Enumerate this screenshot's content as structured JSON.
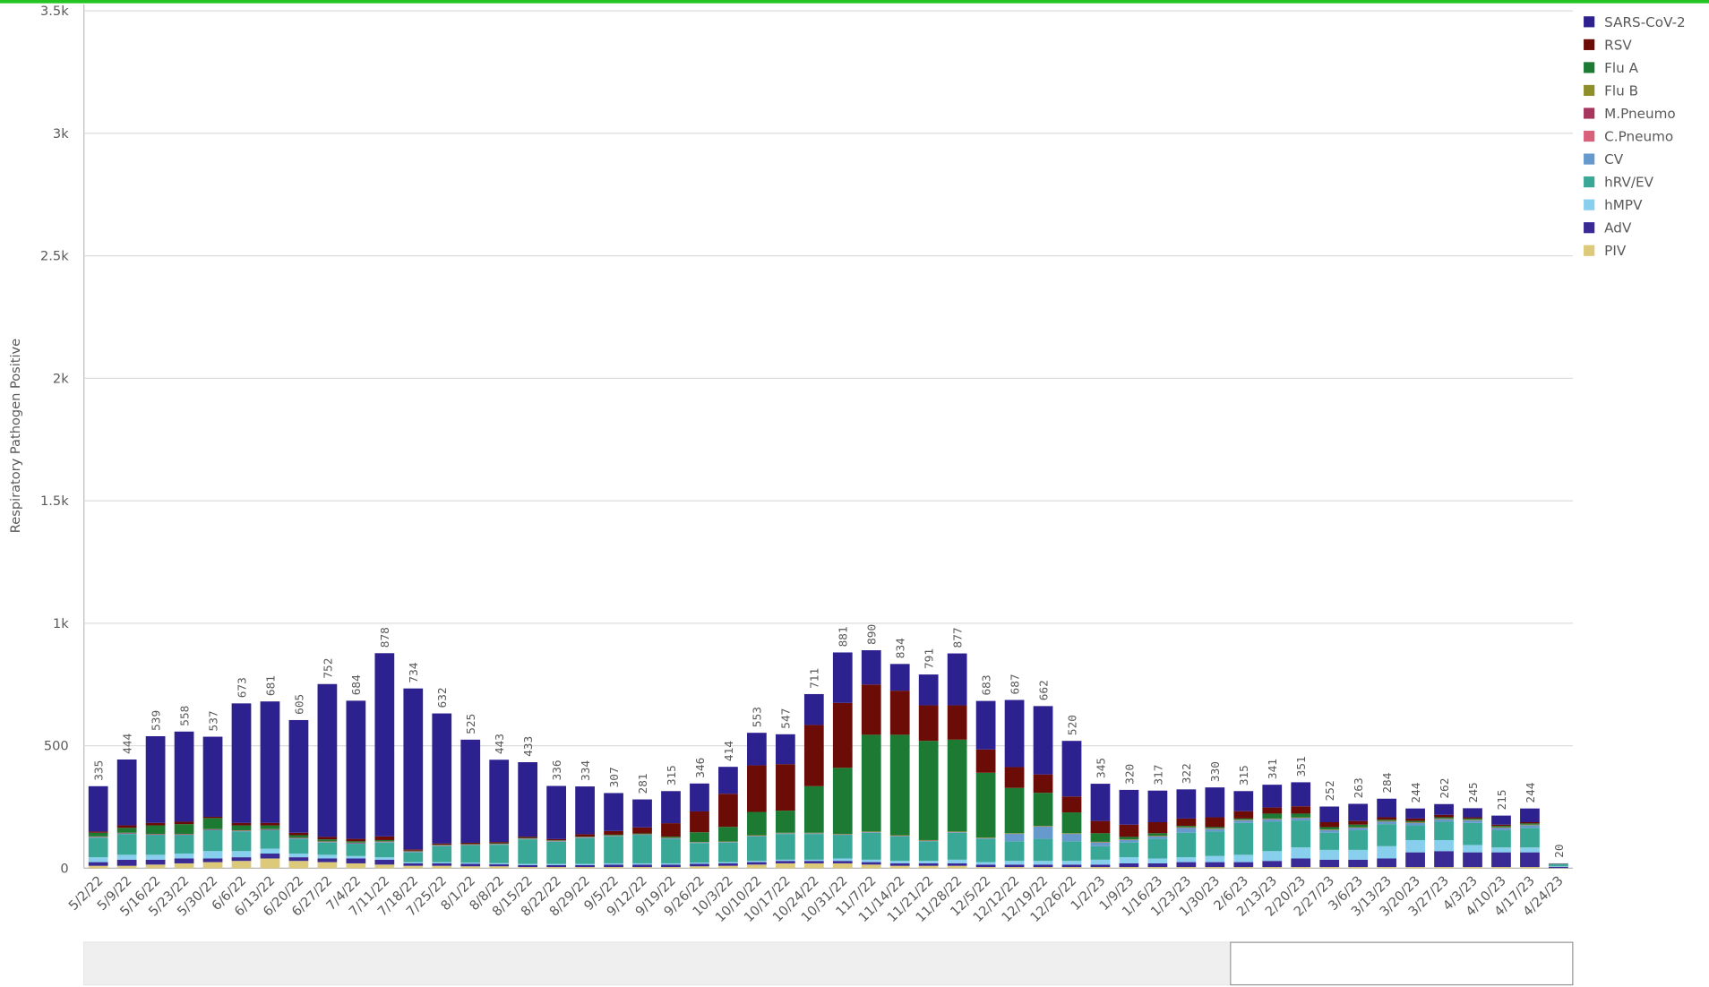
{
  "chart_data": {
    "type": "stacked-bar",
    "y_label": "Respiratory Pathogen Positive",
    "categories": [
      "5/2/22",
      "5/9/22",
      "5/16/22",
      "5/23/22",
      "5/30/22",
      "6/6/22",
      "6/13/22",
      "6/20/22",
      "6/27/22",
      "7/4/22",
      "7/11/22",
      "7/18/22",
      "7/25/22",
      "8/1/22",
      "8/8/22",
      "8/15/22",
      "8/22/22",
      "8/29/22",
      "9/5/22",
      "9/12/22",
      "9/19/22",
      "9/26/22",
      "10/3/22",
      "10/10/22",
      "10/17/22",
      "10/24/22",
      "10/31/22",
      "11/7/22",
      "11/14/22",
      "11/21/22",
      "11/28/22",
      "12/5/22",
      "12/12/22",
      "12/19/22",
      "12/26/22",
      "1/2/23",
      "1/9/23",
      "1/16/23",
      "1/23/23",
      "1/30/23",
      "2/6/23",
      "2/13/23",
      "2/20/23",
      "2/27/23",
      "3/6/23",
      "3/13/23",
      "3/20/23",
      "3/27/23",
      "4/3/23",
      "4/10/23",
      "4/17/23",
      "4/24/23"
    ],
    "totals": [
      335,
      444,
      539,
      558,
      537,
      673,
      681,
      605,
      752,
      684,
      878,
      734,
      632,
      525,
      443,
      433,
      336,
      334,
      307,
      281,
      315,
      346,
      414,
      553,
      547,
      711,
      881,
      890,
      834,
      791,
      877,
      683,
      687,
      662,
      520,
      345,
      320,
      317,
      322,
      330,
      315,
      341,
      351,
      252,
      263,
      284,
      244,
      262,
      245,
      215,
      244,
      20
    ],
    "series": [
      {
        "name": "SARS-CoV-2",
        "color": "#2d2190",
        "values": [
          185,
          269,
          354,
          368,
          327,
          488,
          496,
          460,
          624,
          564,
          748,
          657,
          531,
          421,
          336,
          304,
          217,
          195,
          155,
          114,
          131,
          114,
          110,
          133,
          122,
          126,
          206,
          140,
          109,
          126,
          212,
          198,
          274,
          279,
          227,
          152,
          142,
          129,
          119,
          122,
          82,
          93,
          98,
          64,
          70,
          76,
          41,
          44,
          37,
          37,
          56,
          1
        ]
      },
      {
        "name": "RSV",
        "color": "#6b0d06",
        "values": [
          5,
          10,
          10,
          10,
          5,
          10,
          10,
          10,
          10,
          10,
          15,
          5,
          5,
          5,
          5,
          5,
          5,
          10,
          15,
          25,
          55,
          85,
          135,
          190,
          190,
          250,
          265,
          205,
          180,
          145,
          140,
          95,
          85,
          75,
          65,
          50,
          50,
          45,
          30,
          40,
          30,
          25,
          30,
          20,
          15,
          10,
          10,
          10,
          5,
          5,
          5,
          1
        ]
      },
      {
        "name": "Flu A",
        "color": "#1c7a32",
        "values": [
          15,
          20,
          35,
          40,
          45,
          20,
          15,
          10,
          8,
          5,
          5,
          2,
          2,
          2,
          2,
          2,
          2,
          2,
          3,
          3,
          5,
          40,
          60,
          95,
          90,
          190,
          270,
          395,
          410,
          405,
          375,
          265,
          185,
          135,
          85,
          35,
          10,
          10,
          5,
          5,
          5,
          20,
          15,
          10,
          10,
          5,
          5,
          5,
          5,
          5,
          5,
          1
        ]
      },
      {
        "name": "Flu B",
        "color": "#8f8f2a",
        "values": [
          1,
          1,
          1,
          1,
          1,
          1,
          1,
          1,
          1,
          1,
          1,
          1,
          1,
          1,
          1,
          1,
          1,
          1,
          1,
          1,
          1,
          1,
          1,
          2,
          2,
          2,
          2,
          2,
          2,
          2,
          2,
          2,
          2,
          2,
          2,
          2,
          2,
          2,
          2,
          2,
          2,
          2,
          2,
          2,
          2,
          2,
          2,
          2,
          2,
          2,
          2,
          0
        ]
      },
      {
        "name": "M.Pneumo",
        "color": "#a6365e",
        "values": [
          2,
          2,
          2,
          2,
          2,
          2,
          2,
          2,
          2,
          2,
          2,
          2,
          1,
          1,
          1,
          1,
          1,
          1,
          1,
          1,
          1,
          1,
          1,
          1,
          1,
          1,
          1,
          1,
          1,
          1,
          1,
          1,
          1,
          1,
          1,
          1,
          1,
          1,
          1,
          1,
          1,
          1,
          1,
          1,
          1,
          1,
          1,
          1,
          1,
          1,
          1,
          0
        ]
      },
      {
        "name": "C.Pneumo",
        "color": "#d9607a",
        "values": [
          0,
          0,
          0,
          0,
          0,
          0,
          0,
          0,
          0,
          0,
          0,
          0,
          0,
          0,
          0,
          0,
          0,
          0,
          0,
          0,
          0,
          0,
          0,
          0,
          0,
          0,
          0,
          0,
          0,
          0,
          0,
          0,
          0,
          0,
          0,
          0,
          0,
          0,
          0,
          0,
          0,
          0,
          0,
          0,
          0,
          0,
          0,
          0,
          0,
          0,
          0,
          0
        ]
      },
      {
        "name": "CV",
        "color": "#6699cc",
        "values": [
          2,
          2,
          2,
          2,
          2,
          2,
          2,
          2,
          2,
          2,
          2,
          2,
          2,
          2,
          2,
          2,
          2,
          2,
          2,
          2,
          2,
          2,
          2,
          2,
          2,
          2,
          2,
          2,
          2,
          2,
          2,
          2,
          30,
          50,
          30,
          15,
          10,
          10,
          20,
          10,
          10,
          10,
          10,
          10,
          10,
          10,
          10,
          10,
          10,
          10,
          10,
          1
        ]
      },
      {
        "name": "hRV/EV",
        "color": "#3aa896",
        "values": [
          80,
          85,
          80,
          75,
          85,
          80,
          75,
          60,
          50,
          50,
          60,
          40,
          65,
          70,
          75,
          100,
          90,
          105,
          110,
          115,
          100,
          80,
          80,
          100,
          105,
          105,
          95,
          110,
          100,
          80,
          110,
          95,
          80,
          90,
          80,
          55,
          60,
          80,
          100,
          100,
          130,
          120,
          110,
          70,
          80,
          90,
          60,
          75,
          90,
          70,
          80,
          8
        ]
      },
      {
        "name": "hMPV",
        "color": "#88cfee",
        "values": [
          20,
          20,
          20,
          20,
          30,
          25,
          20,
          15,
          15,
          10,
          10,
          5,
          5,
          5,
          5,
          5,
          5,
          5,
          5,
          5,
          5,
          5,
          5,
          5,
          5,
          5,
          10,
          10,
          10,
          10,
          15,
          10,
          15,
          15,
          15,
          20,
          25,
          20,
          20,
          25,
          30,
          40,
          45,
          40,
          40,
          50,
          50,
          45,
          30,
          20,
          20,
          2
        ]
      },
      {
        "name": "AdV",
        "color": "#3a2a96",
        "values": [
          15,
          25,
          20,
          20,
          15,
          15,
          20,
          15,
          15,
          20,
          20,
          10,
          10,
          10,
          8,
          8,
          8,
          8,
          10,
          10,
          10,
          10,
          10,
          10,
          10,
          10,
          10,
          10,
          10,
          10,
          10,
          10,
          10,
          10,
          10,
          10,
          15,
          15,
          20,
          20,
          20,
          25,
          35,
          30,
          30,
          35,
          60,
          65,
          60,
          60,
          60,
          5
        ]
      },
      {
        "name": "PIV",
        "color": "#dcc97a",
        "values": [
          10,
          10,
          15,
          20,
          25,
          30,
          40,
          30,
          25,
          20,
          15,
          10,
          10,
          8,
          8,
          5,
          5,
          5,
          5,
          5,
          5,
          8,
          10,
          15,
          20,
          20,
          20,
          15,
          10,
          10,
          10,
          5,
          5,
          5,
          5,
          5,
          5,
          5,
          5,
          5,
          5,
          5,
          5,
          5,
          5,
          5,
          5,
          5,
          5,
          5,
          5,
          1
        ]
      }
    ],
    "ylim": [
      0,
      3500
    ],
    "yticks": [
      0,
      500,
      {
        "value": 1000,
        "label": "1k"
      },
      {
        "value": 1500,
        "label": "1.5k"
      },
      {
        "value": 2000,
        "label": "2k"
      },
      {
        "value": 2500,
        "label": "2.5k"
      },
      {
        "value": 3000,
        "label": "3k"
      },
      {
        "value": 3500,
        "label": "3.5k"
      }
    ],
    "grid": true,
    "legend": "top-right"
  }
}
